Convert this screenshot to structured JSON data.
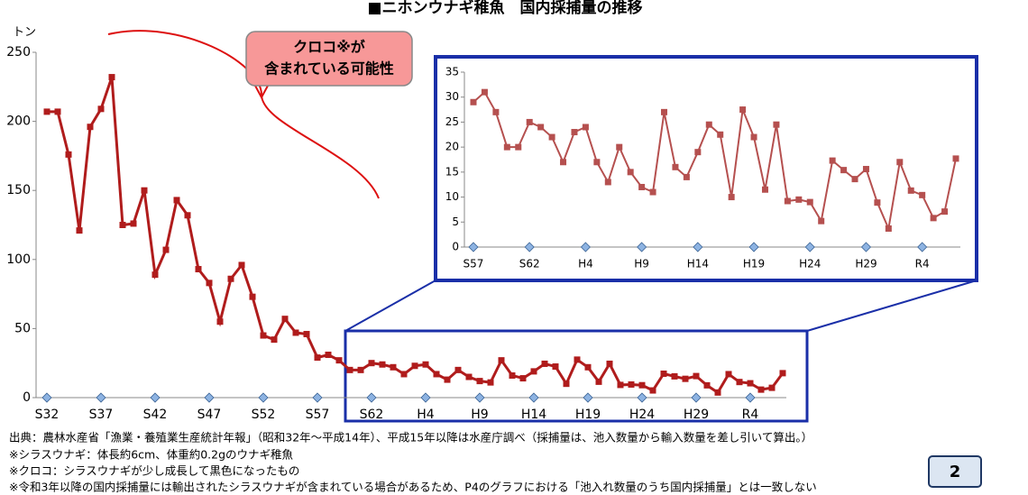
{
  "chart_data": [
    {
      "type": "line",
      "title": "■ニホンウナギ稚魚　国内採捕量の推移",
      "y_label": "トン",
      "categories": [
        "S32",
        null,
        null,
        null,
        null,
        "S37",
        null,
        null,
        null,
        null,
        "S42",
        null,
        null,
        null,
        null,
        "S47",
        null,
        null,
        null,
        null,
        "S52",
        null,
        null,
        null,
        null,
        "S57",
        null,
        null,
        null,
        null,
        "S62",
        null,
        null,
        null,
        null,
        "H4",
        null,
        null,
        null,
        null,
        "H9",
        null,
        null,
        null,
        null,
        "H14",
        null,
        null,
        null,
        null,
        "H19",
        null,
        null,
        null,
        null,
        "H24",
        null,
        null,
        null,
        null,
        "H29",
        null,
        null,
        null,
        null,
        "R4",
        null,
        null,
        null
      ],
      "values": [
        207,
        207,
        176,
        121,
        196,
        209,
        232,
        125,
        126,
        150,
        89,
        107,
        143,
        132,
        93,
        83,
        55,
        86,
        96,
        73,
        45,
        42,
        57,
        47,
        46,
        29,
        31,
        27,
        20,
        20,
        25,
        24,
        22,
        17,
        23,
        24,
        17,
        13,
        20,
        15,
        12,
        11,
        27,
        16,
        14,
        19,
        24.5,
        22.5,
        10,
        27.5,
        22,
        11.5,
        24.5,
        9.2,
        9.5,
        9,
        5.2,
        17.3,
        15.4,
        13.6,
        15.6,
        8.9,
        3.7,
        17,
        11.3,
        10.4,
        5.8,
        7.1,
        17.7
      ],
      "color": "#b01c1c",
      "ylim": [
        0,
        250
      ],
      "yticks": [
        0,
        50,
        100,
        150,
        200,
        250
      ],
      "annotations": [
        "クロコ※が",
        "含まれている可能性"
      ]
    },
    {
      "type": "line",
      "categories": [
        "S57",
        null,
        null,
        null,
        null,
        "S62",
        null,
        null,
        null,
        null,
        "H4",
        null,
        null,
        null,
        null,
        "H9",
        null,
        null,
        null,
        null,
        "H14",
        null,
        null,
        null,
        null,
        "H19",
        null,
        null,
        null,
        null,
        "H24",
        null,
        null,
        null,
        null,
        "H29",
        null,
        null,
        null,
        null,
        "R4",
        null,
        null,
        null
      ],
      "values": [
        29,
        31,
        27,
        20,
        20,
        25,
        24,
        22,
        17,
        23,
        24,
        17,
        13,
        20,
        15,
        12,
        11,
        27,
        16,
        14,
        19,
        24.5,
        22.5,
        10,
        27.5,
        22,
        11.5,
        24.5,
        9.2,
        9.5,
        9,
        5.2,
        17.3,
        15.4,
        13.6,
        15.6,
        8.9,
        3.7,
        17,
        11.3,
        10.4,
        5.8,
        7.1,
        17.7
      ],
      "color": "#b5504f",
      "ylim": [
        0,
        35
      ],
      "yticks": [
        0,
        5,
        10,
        15,
        20,
        25,
        30,
        35
      ]
    }
  ],
  "notes": [
    "出典：農林水産省「漁業・養殖業生産統計年報」（昭和32年～平成14年）、平成15年以降は水産庁調べ（採捕量は、池入数量から輸入数量を差し引いて算出。）",
    "※シラスウナギ：体長約6cm、体重約0.2gのウナギ稚魚",
    "※クロコ：シラスウナギが少し成長して黒色になったもの",
    "※令和3年以降の国内採捕量には輸出されたシラスウナギが含まれている場合があるため、P4のグラフにおける「池入れ数量のうち国内採捕量」とは一致しない"
  ],
  "page_number": "2"
}
